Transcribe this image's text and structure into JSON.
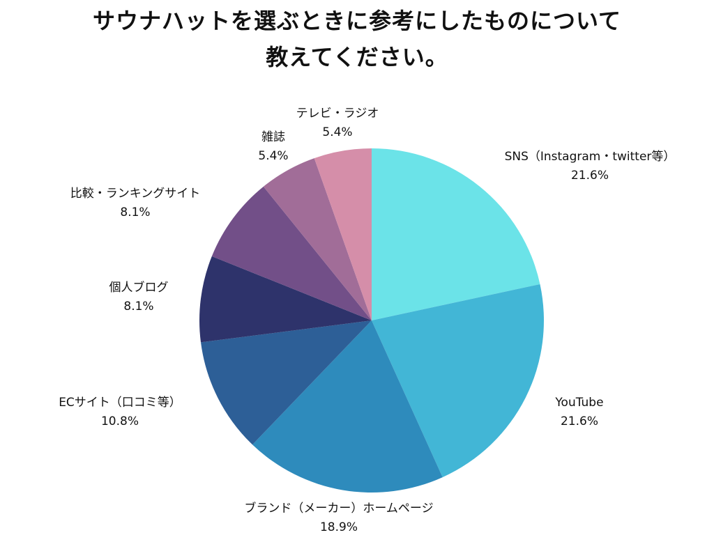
{
  "chart_data": {
    "type": "pie",
    "title_lines": [
      "サウナハットを選ぶときに参考にしたものについて",
      "教えてください。"
    ],
    "categories": [
      "SNS（Instagram・twitter等）",
      "YouTube",
      "ブランド（メーカー）ホームページ",
      "ECサイト（口コミ等）",
      "個人ブログ",
      "比較・ランキングサイト",
      "雑誌",
      "テレビ・ラジオ"
    ],
    "values": [
      21.6,
      21.6,
      18.9,
      10.8,
      8.1,
      8.1,
      5.4,
      5.4
    ],
    "value_labels": [
      "21.6%",
      "21.6%",
      "18.9%",
      "10.8%",
      "8.1%",
      "8.1%",
      "5.4%",
      "5.4%"
    ],
    "colors": [
      "#6be3e8",
      "#42b6d6",
      "#2e8bbc",
      "#2d5f97",
      "#2e336b",
      "#724f88",
      "#a16d98",
      "#d58ea9"
    ],
    "start_angle": "12 o'clock",
    "direction": "clockwise",
    "legend": "none"
  }
}
